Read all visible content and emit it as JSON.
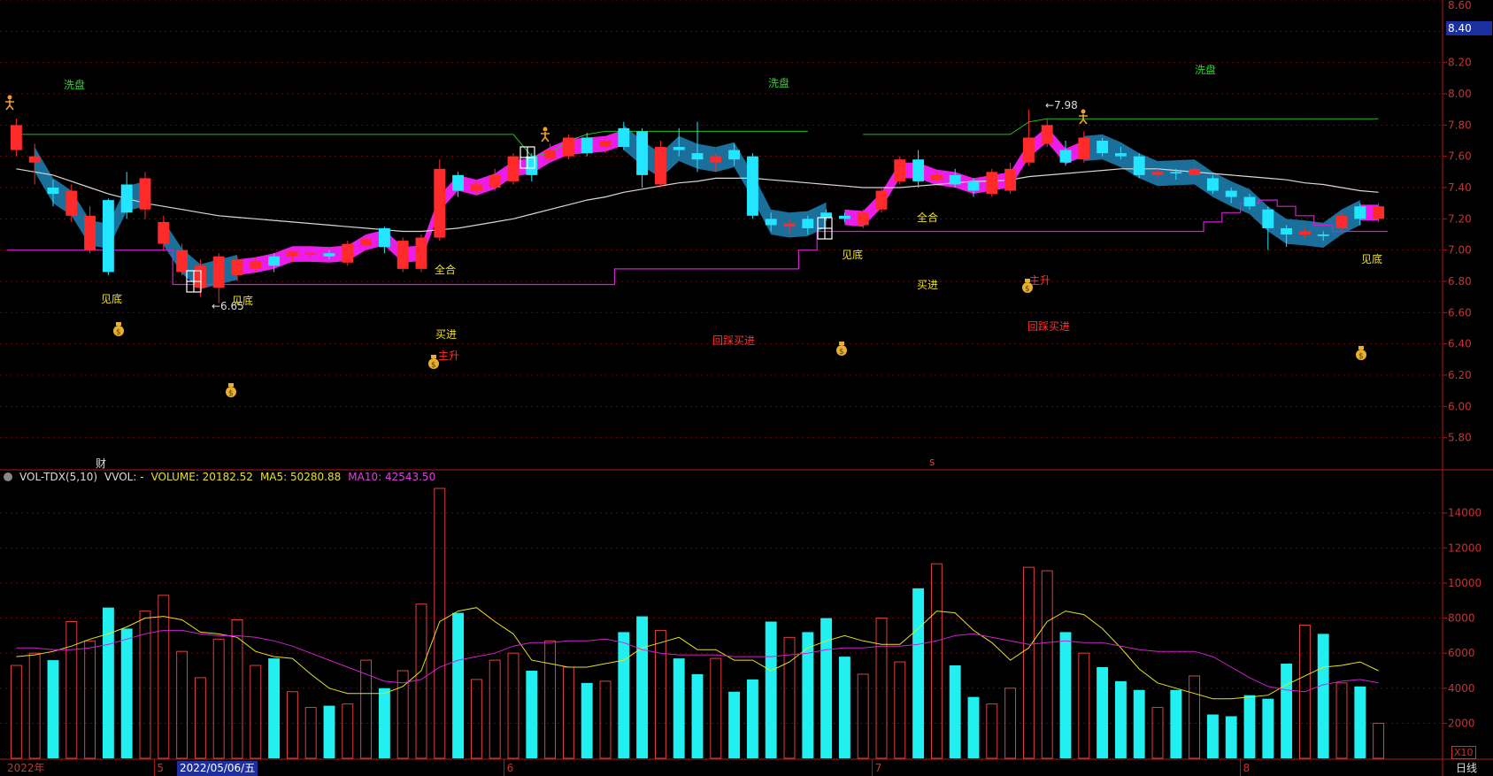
{
  "price_axis": {
    "ticks": [
      "8.60",
      "8.40",
      "8.20",
      "8.00",
      "7.80",
      "7.60",
      "7.40",
      "7.20",
      "7.00",
      "6.80",
      "6.60",
      "6.40",
      "6.20",
      "6.00",
      "5.80"
    ],
    "current_price": "8.40"
  },
  "volume_axis": {
    "ticks": [
      "14000",
      "12000",
      "10000",
      "8000",
      "6000",
      "4000",
      "2000"
    ],
    "multiplier": "X10"
  },
  "indicator": {
    "name": "VOL-TDX(5,10)",
    "vvol": "VVOL: -",
    "volume": "VOLUME: 20182.52",
    "ma5": "MA5: 50280.88",
    "ma10": "MA10: 42543.50"
  },
  "time_axis": {
    "start": "2022年",
    "months": [
      "5",
      "6",
      "7",
      "8"
    ],
    "cursor_date": "2022/05/06/五",
    "period": "日线"
  },
  "markers": {
    "cai": "财",
    "s": "s"
  },
  "annotations": {
    "xipan": "洗盘",
    "jiandi": "见底",
    "quanhe": "全合",
    "maijin": "买进",
    "zhusheng": "主升",
    "huicai_maijin": "回踩买进",
    "low_price": "←6.65",
    "high_price": "←7.98"
  },
  "colors": {
    "up": "#ff2a2a",
    "down": "#22e5ff",
    "magenta": "#ff20ff",
    "band": "#1c78a8",
    "ma_white": "#d8d8d8",
    "ma_yellow": "#e8e020",
    "ma_magenta": "#d020d0",
    "green_line": "#20c020",
    "grid": "#7a0000"
  },
  "chart_data": {
    "type": "candlestick",
    "price_range": [
      5.6,
      8.6
    ],
    "volume_range": [
      0,
      15500
    ],
    "candles": [
      [
        7.64,
        7.8,
        7.84,
        7.6,
        5300
      ],
      [
        7.56,
        7.6,
        7.68,
        7.42,
        6000
      ],
      [
        7.4,
        7.36,
        7.45,
        7.28,
        5600
      ],
      [
        7.22,
        7.38,
        7.42,
        7.18,
        7800
      ],
      [
        7.0,
        7.22,
        7.28,
        6.98,
        6700
      ],
      [
        7.32,
        6.86,
        7.33,
        6.84,
        8600
      ],
      [
        7.42,
        7.24,
        7.5,
        7.2,
        7400
      ],
      [
        7.26,
        7.46,
        7.5,
        7.2,
        8400
      ],
      [
        7.04,
        7.18,
        7.22,
        7.0,
        9300
      ],
      [
        6.86,
        7.0,
        7.04,
        6.84,
        6100
      ],
      [
        6.76,
        6.9,
        6.94,
        6.7,
        4600
      ],
      [
        6.76,
        6.96,
        6.98,
        6.66,
        6800
      ],
      [
        6.84,
        6.94,
        6.96,
        6.8,
        7900
      ],
      [
        6.88,
        6.93,
        6.95,
        6.86,
        5300
      ],
      [
        6.96,
        6.9,
        6.98,
        6.86,
        5700
      ],
      [
        6.96,
        6.99,
        7.0,
        6.92,
        3800
      ],
      [
        6.97,
        6.98,
        6.99,
        6.95,
        2900
      ],
      [
        6.98,
        6.96,
        7.0,
        6.94,
        3000
      ],
      [
        6.92,
        7.04,
        7.06,
        6.9,
        3100
      ],
      [
        7.03,
        7.07,
        7.1,
        7.02,
        5600
      ],
      [
        7.14,
        7.02,
        7.15,
        6.98,
        4000
      ],
      [
        6.88,
        7.06,
        7.08,
        6.86,
        5000
      ],
      [
        6.88,
        7.08,
        7.1,
        6.86,
        8800
      ],
      [
        7.08,
        7.52,
        7.58,
        7.06,
        15400
      ],
      [
        7.48,
        7.38,
        7.5,
        7.34,
        8300
      ],
      [
        7.38,
        7.42,
        7.44,
        7.36,
        4500
      ],
      [
        7.4,
        7.48,
        7.52,
        7.38,
        5600
      ],
      [
        7.44,
        7.6,
        7.62,
        7.42,
        6000
      ],
      [
        7.6,
        7.48,
        7.62,
        7.44,
        5000
      ],
      [
        7.58,
        7.64,
        7.68,
        7.56,
        6700
      ],
      [
        7.6,
        7.72,
        7.74,
        7.58,
        5200
      ],
      [
        7.72,
        7.62,
        7.75,
        7.6,
        4300
      ],
      [
        7.66,
        7.7,
        7.72,
        7.62,
        4400
      ],
      [
        7.78,
        7.66,
        7.82,
        7.64,
        7200
      ],
      [
        7.76,
        7.48,
        7.78,
        7.4,
        8100
      ],
      [
        7.42,
        7.66,
        7.7,
        7.4,
        7300
      ],
      [
        7.66,
        7.64,
        7.78,
        7.6,
        5700
      ],
      [
        7.62,
        7.58,
        7.82,
        7.5,
        4800
      ],
      [
        7.56,
        7.6,
        7.62,
        7.5,
        5700
      ],
      [
        7.64,
        7.58,
        7.68,
        7.54,
        3800
      ],
      [
        7.6,
        7.22,
        7.62,
        7.2,
        4500
      ],
      [
        7.2,
        7.16,
        7.24,
        7.12,
        7800
      ],
      [
        7.15,
        7.17,
        7.2,
        7.1,
        6900
      ],
      [
        7.2,
        7.14,
        7.22,
        7.1,
        7200
      ],
      [
        7.24,
        7.21,
        7.26,
        7.19,
        8000
      ],
      [
        7.22,
        7.2,
        7.24,
        7.18,
        5800
      ],
      [
        7.16,
        7.24,
        7.26,
        7.14,
        4800
      ],
      [
        7.26,
        7.38,
        7.4,
        7.24,
        8000
      ],
      [
        7.44,
        7.58,
        7.6,
        7.42,
        5500
      ],
      [
        7.58,
        7.44,
        7.64,
        7.4,
        9700
      ],
      [
        7.45,
        7.48,
        7.5,
        7.44,
        11100
      ],
      [
        7.48,
        7.42,
        7.52,
        7.4,
        5300
      ],
      [
        7.44,
        7.38,
        7.46,
        7.34,
        3500
      ],
      [
        7.36,
        7.5,
        7.52,
        7.34,
        3100
      ],
      [
        7.38,
        7.52,
        7.56,
        7.36,
        4000
      ],
      [
        7.56,
        7.72,
        7.9,
        7.54,
        10900
      ],
      [
        7.68,
        7.8,
        7.84,
        7.66,
        10700
      ],
      [
        7.64,
        7.56,
        7.7,
        7.54,
        7200
      ],
      [
        7.58,
        7.72,
        7.76,
        7.56,
        6000
      ],
      [
        7.7,
        7.62,
        7.72,
        7.6,
        5200
      ],
      [
        7.62,
        7.6,
        7.66,
        7.58,
        4400
      ],
      [
        7.6,
        7.48,
        7.62,
        7.46,
        3900
      ],
      [
        7.48,
        7.5,
        7.52,
        7.46,
        2900
      ],
      [
        7.5,
        7.49,
        7.52,
        7.45,
        3900
      ],
      [
        7.48,
        7.52,
        7.54,
        7.46,
        4700
      ],
      [
        7.46,
        7.38,
        7.48,
        7.36,
        2500
      ],
      [
        7.38,
        7.34,
        7.4,
        7.3,
        2400
      ],
      [
        7.34,
        7.28,
        7.36,
        7.26,
        3600
      ],
      [
        7.26,
        7.14,
        7.28,
        7.0,
        3400
      ],
      [
        7.14,
        7.1,
        7.16,
        7.02,
        5400
      ],
      [
        7.1,
        7.12,
        7.14,
        7.08,
        7600
      ],
      [
        7.1,
        7.09,
        7.12,
        7.06,
        7100
      ],
      [
        7.14,
        7.22,
        7.24,
        7.12,
        4300
      ],
      [
        7.28,
        7.2,
        7.3,
        7.16,
        4100
      ],
      [
        7.2,
        7.28,
        7.3,
        7.18,
        2000
      ]
    ],
    "ma_white": [
      7.52,
      7.5,
      7.48,
      7.44,
      7.4,
      7.36,
      7.33,
      7.3,
      7.28,
      7.26,
      7.24,
      7.22,
      7.21,
      7.2,
      7.19,
      7.18,
      7.17,
      7.16,
      7.15,
      7.14,
      7.13,
      7.12,
      7.12,
      7.13,
      7.14,
      7.16,
      7.18,
      7.2,
      7.23,
      7.26,
      7.29,
      7.32,
      7.34,
      7.37,
      7.39,
      7.41,
      7.43,
      7.44,
      7.46,
      7.46,
      7.46,
      7.45,
      7.44,
      7.43,
      7.42,
      7.41,
      7.4,
      7.4,
      7.4,
      7.41,
      7.42,
      7.43,
      7.44,
      7.44,
      7.45,
      7.47,
      7.48,
      7.49,
      7.5,
      7.51,
      7.52,
      7.52,
      7.52,
      7.51,
      7.5,
      7.49,
      7.48,
      7.47,
      7.46,
      7.45,
      7.43,
      7.42,
      7.4,
      7.38,
      7.37
    ],
    "green_line": [
      7.74,
      7.74,
      7.74,
      7.74,
      7.74,
      7.74,
      7.74,
      7.74,
      7.74,
      7.74,
      7.74,
      7.74,
      7.74,
      7.74,
      7.74,
      7.74,
      7.74,
      7.74,
      7.74,
      7.74,
      7.74,
      7.74,
      7.74,
      7.74,
      7.74,
      7.74,
      7.74,
      7.74,
      7.6,
      7.62,
      7.7,
      7.74,
      7.76,
      7.76,
      7.76,
      7.76,
      7.76,
      7.76,
      7.76,
      7.76,
      7.76,
      7.76,
      7.76,
      7.76,
      null,
      null,
      7.74,
      7.74,
      7.74,
      7.74,
      7.74,
      7.74,
      7.74,
      7.74,
      7.74,
      7.82,
      7.84,
      7.84,
      7.84,
      7.84,
      7.84,
      7.84,
      7.84,
      7.84,
      7.84,
      7.84,
      7.84,
      7.84,
      7.84,
      7.84,
      7.84,
      7.84,
      7.84,
      7.84,
      7.84
    ],
    "support_line": [
      7.0,
      7.0,
      7.0,
      7.0,
      7.0,
      7.0,
      7.0,
      7.0,
      7.0,
      6.78,
      6.78,
      6.78,
      6.78,
      6.78,
      6.78,
      6.78,
      6.78,
      6.78,
      6.78,
      6.78,
      6.78,
      6.78,
      6.78,
      6.78,
      6.78,
      6.78,
      6.78,
      6.78,
      6.78,
      6.78,
      6.78,
      6.78,
      6.78,
      6.88,
      6.88,
      6.88,
      6.88,
      6.88,
      6.88,
      6.88,
      6.88,
      6.88,
      6.88,
      7.0,
      7.12,
      7.12,
      7.12,
      7.12,
      7.12,
      7.12,
      7.12,
      7.12,
      7.12,
      7.12,
      7.12,
      7.12,
      7.12,
      7.12,
      7.12,
      7.12,
      7.12,
      7.12,
      7.12,
      7.12,
      7.12,
      7.18,
      7.24,
      7.3,
      7.32,
      7.28,
      7.22,
      7.16,
      7.12,
      7.12,
      7.12
    ],
    "vol_ma5": [
      5800,
      5900,
      6100,
      6400,
      6800,
      7100,
      7500,
      8000,
      8100,
      7900,
      7200,
      7100,
      6900,
      6100,
      5800,
      5700,
      4800,
      4000,
      3700,
      3700,
      3700,
      4100,
      5000,
      7800,
      8400,
      8600,
      7800,
      7100,
      5600,
      5400,
      5200,
      5200,
      5400,
      5600,
      6300,
      6600,
      6900,
      6200,
      6200,
      5600,
      5600,
      5000,
      5500,
      6300,
      6700,
      7000,
      6700,
      6500,
      6500,
      7400,
      8400,
      8300,
      7300,
      6600,
      5600,
      6300,
      7800,
      8400,
      8200,
      7400,
      6300,
      5100,
      4300,
      4000,
      3700,
      3400,
      3400,
      3500,
      3600,
      4200,
      4700,
      5200,
      5300,
      5500,
      5000
    ],
    "vol_ma10": [
      6300,
      6300,
      6200,
      6200,
      6300,
      6500,
      6800,
      7100,
      7300,
      7300,
      7100,
      7000,
      7000,
      6900,
      6700,
      6400,
      6000,
      5600,
      5200,
      4800,
      4400,
      4300,
      4500,
      5200,
      5600,
      5800,
      6000,
      6400,
      6600,
      6600,
      6700,
      6700,
      6800,
      6600,
      6200,
      6000,
      5900,
      5900,
      5900,
      5800,
      5800,
      5800,
      5900,
      6000,
      6200,
      6300,
      6300,
      6400,
      6400,
      6500,
      6700,
      7000,
      7100,
      6900,
      6700,
      6500,
      6600,
      6700,
      6600,
      6600,
      6400,
      6200,
      6100,
      6100,
      6100,
      5800,
      5200,
      4600,
      4100,
      3900,
      3800,
      4200,
      4400,
      4500,
      4300
    ]
  }
}
